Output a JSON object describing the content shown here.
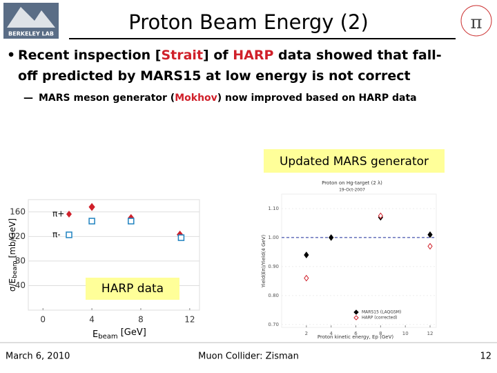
{
  "slide": {
    "title": "Proton Beam Energy (2)",
    "logo_text": "BERKELEY LAB",
    "bullet": [
      "Recent inspection [",
      "Strait",
      "] of ",
      "HARP",
      " data showed that fall-",
      "off predicted by MARS15 at low energy is not correct"
    ],
    "sub_bullet": [
      "MARS meson generator (",
      "Mokhov",
      ") now improved based on HARP data"
    ],
    "callout_right": "Updated MARS generator",
    "callout_left": "HARP data",
    "footer": {
      "date": "March 6, 2010",
      "center": "Muon Collider: Zisman",
      "page": "12"
    }
  },
  "chart_data": [
    {
      "type": "scatter",
      "y_label": [
        "σ/E",
        "beam",
        " [mb/GeV]"
      ],
      "x_label": [
        "E",
        "beam",
        " [GeV]"
      ],
      "xlim": [
        -1.2,
        12.8
      ],
      "xticks": [
        0,
        4,
        8,
        12
      ],
      "ylim": [
        0,
        180
      ],
      "yticks": [
        40,
        80,
        120,
        160
      ],
      "series": [
        {
          "name": "π+",
          "color": "#d0202a",
          "marker": "diamond",
          "filled": true,
          "x": [
            4,
            7.2,
            11.2
          ],
          "values": [
            168,
            150,
            123
          ]
        },
        {
          "name": "π-",
          "color": "#1f82c0",
          "marker": "square",
          "filled": false,
          "x": [
            4,
            7.2,
            11.3
          ],
          "values": [
            145,
            145,
            118
          ]
        }
      ]
    },
    {
      "type": "scatter",
      "title": "Proton on Hg-target (2 λ)",
      "subtitle": "19-Oct-2007",
      "y_label": "Yield(Eπ)/Yield(4 GeV)",
      "x_label": "Proton kinetic energy, Ep (GeV)",
      "xlim": [
        0,
        12.5
      ],
      "xticks": [
        2,
        4,
        6,
        8,
        10,
        12
      ],
      "ylim": [
        0.69,
        1.15
      ],
      "yticks": [
        {
          "value": 0.7,
          "label": "0.70"
        },
        {
          "value": 0.8,
          "label": "0.80"
        },
        {
          "value": 0.9,
          "label": "0.90"
        },
        {
          "value": 1,
          "label": "1.00"
        },
        {
          "value": 1.1,
          "label": "1.10"
        }
      ],
      "reference_line": 1,
      "series": [
        {
          "name": "MARS15 (LAQGSM)",
          "color": "#000000",
          "marker": "diamond",
          "filled": true,
          "x": [
            2,
            4,
            8,
            12
          ],
          "values": [
            0.94,
            1,
            1.07,
            1.01
          ]
        },
        {
          "name": "HARP (corrected)",
          "color": "#d0202a",
          "marker": "diamond",
          "filled": false,
          "x": [
            2,
            8,
            12
          ],
          "values": [
            0.86,
            1.075,
            0.97
          ]
        }
      ]
    }
  ]
}
